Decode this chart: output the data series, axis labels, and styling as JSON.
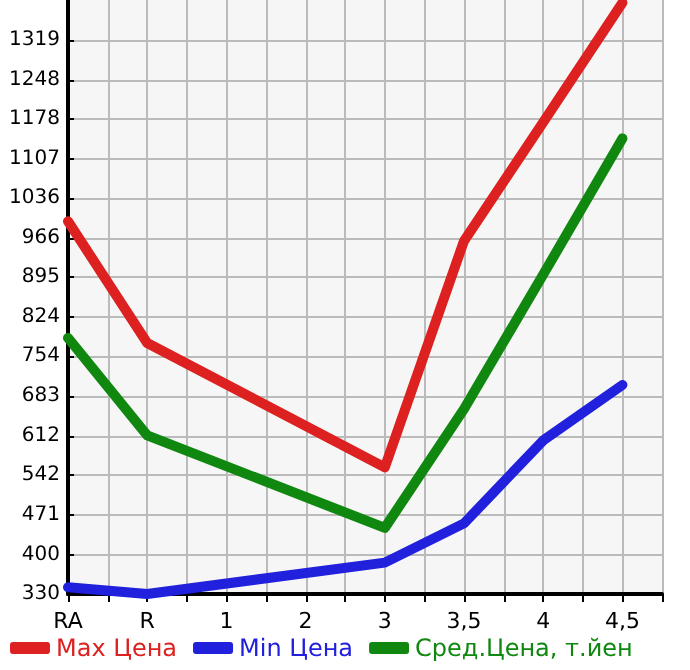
{
  "chart_data": {
    "type": "line",
    "categories": [
      "RA",
      "R",
      "1",
      "2",
      "3",
      "3,5",
      "4",
      "4,5"
    ],
    "series": [
      {
        "name": "Max Цена",
        "color": "#dd2020",
        "values": [
          995,
          778,
          null,
          null,
          556,
          960,
          1172,
          1385
        ]
      },
      {
        "name": "Min Цена",
        "color": "#2020dd",
        "values": [
          342,
          330,
          null,
          null,
          386,
          456,
          604,
          703
        ]
      },
      {
        "name": "Сред.Цена, т.йен",
        "color": "#108810",
        "values": [
          787,
          613,
          null,
          null,
          448,
          660,
          900,
          1143
        ]
      }
    ],
    "ylim": [
      330,
      1390
    ],
    "yticks": [
      330,
      400,
      471,
      542,
      612,
      683,
      754,
      824,
      895,
      966,
      1036,
      1107,
      1178,
      1248,
      1319
    ],
    "grid": true,
    "legend": "bottom",
    "marker": "none"
  }
}
